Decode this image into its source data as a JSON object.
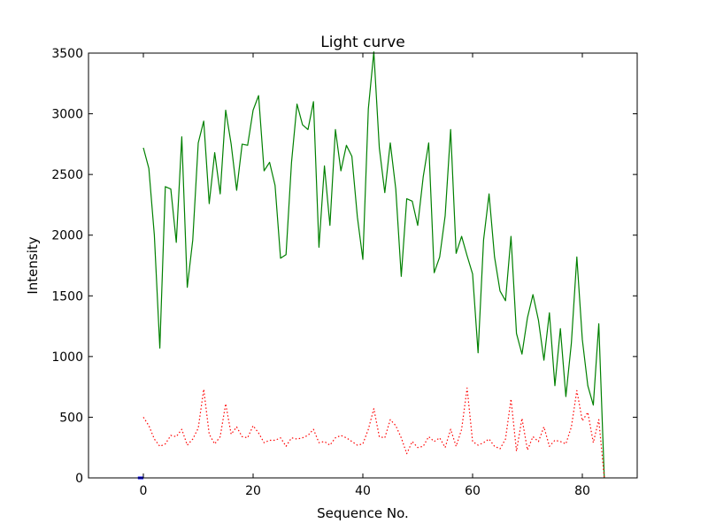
{
  "chart_data": {
    "type": "line",
    "title": "Light curve",
    "xlabel": "Sequence No.",
    "ylabel": "Intensity",
    "xlim": [
      -10,
      90
    ],
    "ylim": [
      0,
      3500
    ],
    "xticks": [
      "0",
      "20",
      "40",
      "60",
      "80"
    ],
    "yticks": [
      "0",
      "500",
      "1000",
      "1500",
      "2000",
      "2500",
      "3000",
      "3500"
    ],
    "grid": false,
    "legend": "none",
    "series": [
      {
        "color": "#008000",
        "style": "solid",
        "x": [
          0,
          1,
          2,
          3,
          4,
          5,
          6,
          7,
          8,
          9,
          10,
          11,
          12,
          13,
          14,
          15,
          16,
          17,
          18,
          19,
          20,
          21,
          22,
          23,
          24,
          25,
          26,
          27,
          28,
          29,
          30,
          31,
          32,
          33,
          34,
          35,
          36,
          37,
          38,
          39,
          40,
          41,
          42,
          43,
          44,
          45,
          46,
          47,
          48,
          49,
          50,
          51,
          52,
          53,
          54,
          55,
          56,
          57,
          58,
          59,
          60,
          61,
          62,
          63,
          64,
          65,
          66,
          67,
          68,
          69,
          70,
          71,
          72,
          73,
          74,
          75,
          76,
          77,
          78,
          79,
          80,
          81,
          82,
          83,
          84
        ],
        "y": [
          2720,
          2550,
          2000,
          1070,
          2400,
          2380,
          1940,
          2810,
          1570,
          1960,
          2760,
          2940,
          2260,
          2680,
          2340,
          3030,
          2750,
          2370,
          2750,
          2740,
          3030,
          3150,
          2530,
          2600,
          2410,
          1810,
          1840,
          2600,
          3080,
          2910,
          2870,
          3100,
          1900,
          2570,
          2080,
          2870,
          2530,
          2740,
          2650,
          2150,
          1800,
          3040,
          3510,
          2720,
          2350,
          2760,
          2380,
          1660,
          2300,
          2280,
          2080,
          2480,
          2760,
          1690,
          1820,
          2160,
          2870,
          1850,
          1990,
          1830,
          1680,
          1030,
          1960,
          2340,
          1820,
          1540,
          1460,
          1990,
          1190,
          1020,
          1320,
          1510,
          1300,
          970,
          1360,
          760,
          1230,
          670,
          1110,
          1820,
          1140,
          760,
          600,
          1270,
          0
        ]
      },
      {
        "color": "#ff0000",
        "style": "dotted",
        "x": [
          0,
          1,
          2,
          3,
          4,
          5,
          6,
          7,
          8,
          9,
          10,
          11,
          12,
          13,
          14,
          15,
          16,
          17,
          18,
          19,
          20,
          21,
          22,
          23,
          24,
          25,
          26,
          27,
          28,
          29,
          30,
          31,
          32,
          33,
          34,
          35,
          36,
          37,
          38,
          39,
          40,
          41,
          42,
          43,
          44,
          45,
          46,
          47,
          48,
          49,
          50,
          51,
          52,
          53,
          54,
          55,
          56,
          57,
          58,
          59,
          60,
          61,
          62,
          63,
          64,
          65,
          66,
          67,
          68,
          69,
          70,
          71,
          72,
          73,
          74,
          75,
          76,
          77,
          78,
          79,
          80,
          81,
          82,
          83,
          84
        ],
        "y": [
          500,
          430,
          320,
          260,
          280,
          350,
          340,
          400,
          270,
          320,
          410,
          730,
          360,
          280,
          340,
          610,
          360,
          420,
          340,
          330,
          430,
          370,
          290,
          310,
          310,
          330,
          260,
          330,
          320,
          330,
          350,
          400,
          290,
          300,
          270,
          330,
          350,
          330,
          300,
          270,
          280,
          400,
          570,
          340,
          330,
          480,
          430,
          330,
          200,
          300,
          250,
          260,
          340,
          300,
          330,
          250,
          400,
          260,
          400,
          740,
          300,
          270,
          290,
          320,
          260,
          240,
          320,
          650,
          220,
          490,
          230,
          340,
          300,
          420,
          260,
          310,
          300,
          280,
          420,
          720,
          470,
          540,
          290,
          480,
          0
        ]
      },
      {
        "color": "#0000ff",
        "style": "solid",
        "x": [
          -1,
          0
        ],
        "y": [
          0,
          0
        ]
      }
    ]
  }
}
